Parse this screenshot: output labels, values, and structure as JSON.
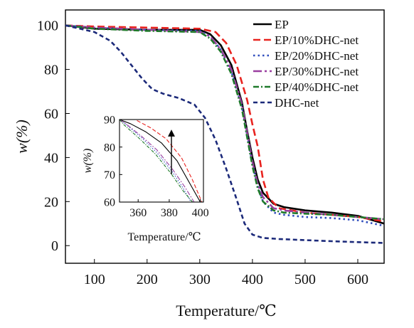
{
  "chart_data": [
    {
      "type": "line",
      "title": "",
      "xlabel": "Temperature/℃",
      "ylabel": "w(%)",
      "xlim": [
        45,
        650
      ],
      "ylim": [
        -8,
        107
      ],
      "xticks": [
        100,
        200,
        300,
        400,
        500,
        600
      ],
      "yticks": [
        0,
        20,
        40,
        60,
        80,
        100
      ],
      "grid": false,
      "legend_position": "top-right",
      "series": [
        {
          "name": "EP",
          "color": "#000000",
          "dash": "solid",
          "points": [
            [
              45,
              100
            ],
            [
              100,
              98.5
            ],
            [
              200,
              98
            ],
            [
              300,
              98
            ],
            [
              320,
              96
            ],
            [
              340,
              91
            ],
            [
              360,
              82
            ],
            [
              380,
              65
            ],
            [
              390,
              52
            ],
            [
              400,
              40
            ],
            [
              410,
              30
            ],
            [
              420,
              24
            ],
            [
              440,
              19
            ],
            [
              460,
              17.5
            ],
            [
              500,
              16
            ],
            [
              550,
              15
            ],
            [
              600,
              13.5
            ],
            [
              650,
              10
            ]
          ]
        },
        {
          "name": "EP/10%DHC-net",
          "color": "#e8231f",
          "dash": "dashed",
          "points": [
            [
              45,
              100
            ],
            [
              100,
              99.5
            ],
            [
              200,
              99
            ],
            [
              300,
              98.5
            ],
            [
              330,
              97
            ],
            [
              350,
              92
            ],
            [
              370,
              82
            ],
            [
              390,
              66
            ],
            [
              400,
              55
            ],
            [
              410,
              45
            ],
            [
              420,
              30
            ],
            [
              430,
              22
            ],
            [
              450,
              17
            ],
            [
              500,
              15
            ],
            [
              550,
              14
            ],
            [
              600,
              13
            ],
            [
              650,
              11
            ]
          ]
        },
        {
          "name": "EP/20%DHC-net",
          "color": "#2f4dbd",
          "dash": "dotted",
          "points": [
            [
              45,
              100
            ],
            [
              100,
              99
            ],
            [
              200,
              98
            ],
            [
              300,
              97.5
            ],
            [
              320,
              95
            ],
            [
              340,
              89
            ],
            [
              360,
              79
            ],
            [
              380,
              63
            ],
            [
              390,
              50
            ],
            [
              400,
              37
            ],
            [
              410,
              27
            ],
            [
              420,
              20
            ],
            [
              440,
              15
            ],
            [
              460,
              14
            ],
            [
              500,
              13
            ],
            [
              550,
              12.5
            ],
            [
              600,
              11.5
            ],
            [
              650,
              9
            ]
          ]
        },
        {
          "name": "EP/30%DHC-net",
          "color": "#9a3fa0",
          "dash": "dashdot-long",
          "points": [
            [
              45,
              100
            ],
            [
              100,
              99
            ],
            [
              200,
              98
            ],
            [
              300,
              97
            ],
            [
              320,
              95
            ],
            [
              340,
              89
            ],
            [
              360,
              80
            ],
            [
              380,
              64
            ],
            [
              390,
              51
            ],
            [
              400,
              38
            ],
            [
              410,
              28
            ],
            [
              420,
              22
            ],
            [
              440,
              17
            ],
            [
              460,
              16
            ],
            [
              500,
              15
            ],
            [
              550,
              14
            ],
            [
              600,
              13
            ],
            [
              650,
              12
            ]
          ]
        },
        {
          "name": "EP/40%DHC-net",
          "color": "#1f7a2a",
          "dash": "dashdot",
          "points": [
            [
              45,
              100
            ],
            [
              100,
              98.5
            ],
            [
              200,
              97.5
            ],
            [
              300,
              97
            ],
            [
              320,
              94
            ],
            [
              340,
              88
            ],
            [
              360,
              78
            ],
            [
              380,
              62
            ],
            [
              390,
              49
            ],
            [
              400,
              36
            ],
            [
              410,
              26
            ],
            [
              420,
              20
            ],
            [
              440,
              16
            ],
            [
              460,
              15
            ],
            [
              500,
              14.5
            ],
            [
              550,
              14
            ],
            [
              600,
              13
            ],
            [
              650,
              12
            ]
          ]
        },
        {
          "name": "DHC-net",
          "color": "#1c2a7a",
          "dash": "dashed-short",
          "points": [
            [
              45,
              100
            ],
            [
              100,
              97
            ],
            [
              130,
              93
            ],
            [
              150,
              88
            ],
            [
              170,
              82
            ],
            [
              190,
              76
            ],
            [
              210,
              71
            ],
            [
              230,
              69
            ],
            [
              260,
              67
            ],
            [
              290,
              64
            ],
            [
              310,
              58
            ],
            [
              330,
              48
            ],
            [
              350,
              35
            ],
            [
              370,
              21
            ],
            [
              385,
              10
            ],
            [
              400,
              5
            ],
            [
              420,
              3.5
            ],
            [
              450,
              3
            ],
            [
              500,
              2.5
            ],
            [
              550,
              2
            ],
            [
              600,
              1.6
            ],
            [
              650,
              1.2
            ]
          ]
        }
      ]
    },
    {
      "type": "line",
      "title": "",
      "xlabel": "Temperature/℃",
      "ylabel": "w(%)",
      "xlim": [
        348,
        402
      ],
      "ylim": [
        60,
        90
      ],
      "xticks": [
        360,
        380,
        400
      ],
      "yticks": [
        60,
        70,
        80,
        90
      ],
      "annotation": "arrow pointing up",
      "series": [
        {
          "name": "EP",
          "color": "#000000",
          "dash": "solid",
          "points": [
            [
              348,
              90
            ],
            [
              355,
              88.5
            ],
            [
              365,
              85.5
            ],
            [
              375,
              81.5
            ],
            [
              385,
              75
            ],
            [
              393,
              67
            ],
            [
              400,
              60
            ]
          ]
        },
        {
          "name": "EP/10%DHC-net",
          "color": "#e8231f",
          "dash": "dashed",
          "points": [
            [
              348,
              90
            ],
            [
              358,
              90
            ],
            [
              368,
              87
            ],
            [
              378,
              83
            ],
            [
              388,
              76
            ],
            [
              395,
              68
            ],
            [
              401,
              60
            ]
          ]
        },
        {
          "name": "EP/20%DHC-net",
          "color": "#2f4dbd",
          "dash": "dotted",
          "points": [
            [
              348,
              90
            ],
            [
              352,
              88.3
            ],
            [
              362,
              83.5
            ],
            [
              372,
              78
            ],
            [
              382,
              71
            ],
            [
              389,
              65
            ],
            [
              394,
              60
            ]
          ]
        },
        {
          "name": "EP/30%DHC-net",
          "color": "#9a3fa0",
          "dash": "dashdot-long",
          "points": [
            [
              348,
              90
            ],
            [
              352,
              88.5
            ],
            [
              362,
              84
            ],
            [
              372,
              79
            ],
            [
              382,
              72
            ],
            [
              390,
              65.5
            ],
            [
              396,
              60
            ]
          ]
        },
        {
          "name": "EP/40%DHC-net",
          "color": "#1f7a2a",
          "dash": "dashdot",
          "points": [
            [
              348,
              90
            ],
            [
              351,
              88
            ],
            [
              361,
              83
            ],
            [
              371,
              77.5
            ],
            [
              381,
              70.5
            ],
            [
              389,
              64
            ],
            [
              395,
              60
            ]
          ]
        }
      ]
    }
  ]
}
